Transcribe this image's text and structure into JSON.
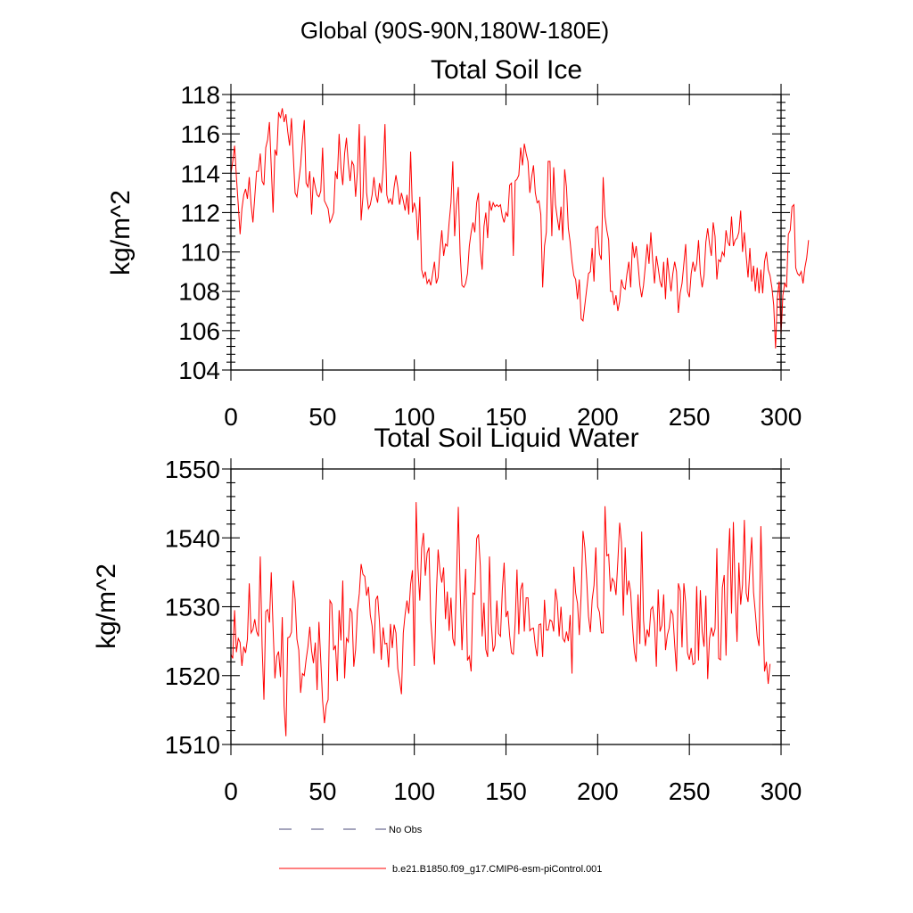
{
  "figure": {
    "suptitle": "Global (90S-90N,180W-180E)"
  },
  "chart_data": [
    {
      "type": "line",
      "title": "Total Soil Ice",
      "xlabel": "",
      "ylabel": "kg/m^2",
      "xlim": [
        0,
        300
      ],
      "ylim": [
        104,
        118
      ],
      "xticks": [
        0,
        50,
        100,
        150,
        200,
        250,
        300
      ],
      "yticks": [
        104,
        106,
        108,
        110,
        112,
        114,
        116,
        118
      ],
      "xtick_labels": [
        "0",
        "50",
        "100",
        "150",
        "200",
        "250",
        "300"
      ],
      "ytick_labels": [
        "104",
        "106",
        "108",
        "110",
        "112",
        "114",
        "116",
        "118"
      ],
      "grid": false,
      "series": [
        {
          "name": "b.e21.B1850.f09_g17.CMIP6-esm-piControl.001",
          "color": "#ff0000",
          "x_start": 0,
          "x_step": 1,
          "values": [
            114.0,
            114.6,
            115.4,
            113.8,
            112.4,
            110.9,
            112.2,
            112.9,
            113.2,
            112.7,
            113.8,
            112.4,
            111.5,
            112.8,
            114.1,
            114.1,
            115.0,
            113.6,
            113.4,
            115.3,
            115.7,
            116.6,
            114.3,
            112.0,
            115.2,
            114.9,
            117.1,
            116.8,
            117.3,
            116.6,
            117.0,
            116.1,
            115.4,
            116.8,
            114.9,
            113.0,
            112.8,
            113.6,
            114.4,
            115.7,
            116.7,
            113.5,
            113.3,
            114.1,
            111.9,
            113.8,
            113.3,
            112.9,
            112.8,
            113.1,
            115.3,
            112.6,
            112.4,
            112.2,
            111.5,
            111.7,
            112.0,
            114.1,
            113.7,
            116.0,
            114.3,
            113.4,
            115.0,
            115.8,
            114.5,
            113.6,
            114.6,
            114.4,
            112.8,
            114.1,
            116.5,
            111.6,
            112.8,
            115.9,
            113.0,
            112.2,
            112.4,
            112.9,
            113.8,
            112.9,
            112.5,
            113.5,
            113.0,
            114.2,
            116.5,
            112.9,
            112.5,
            112.7,
            112.4,
            113.3,
            113.9,
            113.3,
            112.4,
            113.0,
            112.6,
            112.1,
            112.9,
            111.9,
            115.1,
            112.0,
            112.5,
            112.1,
            110.6,
            112.8,
            109.1,
            108.7,
            109.0,
            108.4,
            108.6,
            108.3,
            108.9,
            109.5,
            108.4,
            108.7,
            110.1,
            111.1,
            109.8,
            110.4,
            110.3,
            111.5,
            112.5,
            114.6,
            110.8,
            112.4,
            113.3,
            109.9,
            108.3,
            108.2,
            108.4,
            108.9,
            110.3,
            111.0,
            111.5,
            111.0,
            112.5,
            113.0,
            110.1,
            109.1,
            111.3,
            112.0,
            110.7,
            112.6,
            112.1,
            112.5,
            112.3,
            112.4,
            112.3,
            112.4,
            111.8,
            111.5,
            112.0,
            111.8,
            113.4,
            113.5,
            109.8,
            113.6,
            113.7,
            113.9,
            115.3,
            114.4,
            115.5,
            115.0,
            114.6,
            113.0,
            113.8,
            114.4,
            113.0,
            112.5,
            112.6,
            111.9,
            108.2,
            110.3,
            111.0,
            114.6,
            114.6,
            110.8,
            114.3,
            112.4,
            111.7,
            111.1,
            112.3,
            110.6,
            114.2,
            113.3,
            111.2,
            110.5,
            109.5,
            108.8,
            108.6,
            107.6,
            108.6,
            106.6,
            106.5,
            107.3,
            108.1,
            108.9,
            109.0,
            110.2,
            108.5,
            111.2,
            111.3,
            109.9,
            109.6,
            113.8,
            111.8,
            111.1,
            110.6,
            108.0,
            108.0,
            107.3,
            107.8,
            107.0,
            107.5,
            108.6,
            108.2,
            108.1,
            108.9,
            109.5,
            108.2,
            110.5,
            109.7,
            110.3,
            109.4,
            108.3,
            107.7,
            108.3,
            109.3,
            110.4,
            109.4,
            111.0,
            109.6,
            108.4,
            109.8,
            109.2,
            108.5,
            108.2,
            109.5,
            107.6,
            109.7,
            108.8,
            108.0,
            108.9,
            109.5,
            109.0,
            106.9,
            107.9,
            108.4,
            109.4,
            110.4,
            108.0,
            107.7,
            108.9,
            109.5,
            109.0,
            109.4,
            110.6,
            108.9,
            108.2,
            108.8,
            110.5,
            111.2,
            110.4,
            109.8,
            111.5,
            110.8,
            108.6,
            109.6,
            109.5,
            110.0,
            109.8,
            111.1,
            110.5,
            110.3,
            111.8,
            110.3,
            110.6,
            110.7,
            111.0,
            112.1,
            110.0,
            111.0,
            109.8,
            108.7,
            110.2,
            108.5,
            109.3,
            108.0,
            109.2,
            107.9,
            109.1,
            107.9,
            109.5,
            110.0,
            109.1,
            108.8,
            108.2,
            107.3,
            105.1,
            107.7,
            108.5,
            105.8,
            107.8,
            108.4,
            108.2,
            110.9,
            111.1,
            112.3,
            112.4,
            109.2,
            108.9,
            108.8,
            109.0,
            108.4,
            109.2,
            109.7,
            110.6
          ]
        }
      ]
    },
    {
      "type": "line",
      "title": "Total Soil Liquid Water",
      "xlabel": "",
      "ylabel": "kg/m^2",
      "xlim": [
        0,
        300
      ],
      "ylim": [
        1510,
        1550
      ],
      "xticks": [
        0,
        50,
        100,
        150,
        200,
        250,
        300
      ],
      "yticks": [
        1510,
        1520,
        1530,
        1540,
        1550
      ],
      "xtick_labels": [
        "0",
        "50",
        "100",
        "150",
        "200",
        "250",
        "300"
      ],
      "ytick_labels": [
        "1510",
        "1520",
        "1530",
        "1540",
        "1550"
      ],
      "grid": false,
      "series": [
        {
          "name": "b.e21.B1850.f09_g17.CMIP6-esm-piControl.001",
          "color": "#ff0000",
          "x_start": 0,
          "x_step": 1,
          "values": [
            1523.1,
            1522.5,
            1529.5,
            1523.4,
            1525.4,
            1524.8,
            1521.4,
            1524.2,
            1523.3,
            1525.3,
            1533.4,
            1526.2,
            1526.7,
            1528.2,
            1526.4,
            1525.7,
            1537.3,
            1524.3,
            1516.5,
            1529.3,
            1529.6,
            1527.7,
            1535.0,
            1526.8,
            1519.6,
            1522.8,
            1523.5,
            1519.8,
            1528.5,
            1515.6,
            1511.2,
            1525.5,
            1525.6,
            1526.3,
            1533.8,
            1531.1,
            1525.3,
            1523.7,
            1517.5,
            1520.3,
            1520.0,
            1522.3,
            1524.2,
            1527.1,
            1523.6,
            1521.8,
            1524.8,
            1517.9,
            1527.8,
            1522.2,
            1516.3,
            1513.1,
            1515.7,
            1516.5,
            1530.9,
            1530.4,
            1523.7,
            1524.4,
            1519.2,
            1529.5,
            1525.1,
            1533.8,
            1519.6,
            1525.4,
            1524.9,
            1529.8,
            1529.2,
            1521.3,
            1523.8,
            1529.5,
            1531.9,
            1536.2,
            1534.7,
            1534.4,
            1531.6,
            1532.9,
            1528.8,
            1527.2,
            1523.2,
            1531.0,
            1531.6,
            1527.8,
            1522.3,
            1527.0,
            1524.6,
            1524.7,
            1521.2,
            1527.5,
            1524.0,
            1527.4,
            1526.2,
            1521.0,
            1519.3,
            1517.3,
            1526.2,
            1528.9,
            1530.9,
            1529.0,
            1533.3,
            1535.3,
            1521.4,
            1545.2,
            1535.6,
            1530.9,
            1538.5,
            1540.7,
            1534.5,
            1537.8,
            1538.6,
            1528.0,
            1524.3,
            1521.6,
            1531.7,
            1538.3,
            1535.2,
            1533.5,
            1535.7,
            1528.2,
            1532.2,
            1526.5,
            1531.3,
            1525.4,
            1524.3,
            1533.6,
            1544.5,
            1532.7,
            1523.7,
            1530.0,
            1535.5,
            1522.2,
            1522.8,
            1520.6,
            1532.0,
            1531.8,
            1539.9,
            1540.5,
            1535.9,
            1525.7,
            1530.6,
            1523.8,
            1522.7,
            1537.3,
            1527.6,
            1523.5,
            1524.4,
            1530.9,
            1526.1,
            1525.7,
            1532.4,
            1536.4,
            1528.5,
            1529.4,
            1525.8,
            1523.3,
            1523.1,
            1527.6,
            1535.4,
            1526.0,
            1532.5,
            1533.5,
            1526.4,
            1531.3,
            1531.3,
            1526.5,
            1526.8,
            1526.9,
            1524.3,
            1522.8,
            1527.4,
            1527.5,
            1522.7,
            1531.0,
            1526.6,
            1526.6,
            1528.1,
            1527.9,
            1526.4,
            1532.6,
            1530.7,
            1525.7,
            1530.0,
            1525.4,
            1524.9,
            1526.4,
            1525.0,
            1528.8,
            1520.3,
            1535.8,
            1532.0,
            1530.5,
            1525.9,
            1531.8,
            1541.0,
            1538.6,
            1534.1,
            1528.6,
            1526.3,
            1531.0,
            1533.1,
            1538.6,
            1530.0,
            1529.2,
            1526.2,
            1526.2,
            1544.6,
            1537.4,
            1537.6,
            1532.2,
            1534.1,
            1533.6,
            1531.7,
            1536.6,
            1542.2,
            1539.3,
            1528.7,
            1538.6,
            1531.7,
            1533.8,
            1532.1,
            1527.2,
            1523.5,
            1522.0,
            1531.8,
            1524.6,
            1540.9,
            1528.1,
            1524.3,
            1526.7,
            1525.6,
            1529.6,
            1530.0,
            1527.6,
            1521.3,
            1532.5,
            1526.4,
            1527.3,
            1531.8,
            1523.7,
            1525.9,
            1526.9,
            1529.5,
            1528.9,
            1524.5,
            1520.6,
            1533.4,
            1532.3,
            1524.1,
            1533.4,
            1530.6,
            1523.3,
            1522.3,
            1524.0,
            1521.6,
            1521.8,
            1533.0,
            1522.2,
            1532.4,
            1526.4,
            1524.2,
            1531.6,
            1519.5,
            1525.4,
            1527.0,
            1525.7,
            1526.8,
            1538.5,
            1522.5,
            1522.3,
            1532.8,
            1534.6,
            1522.9,
            1535.3,
            1541.4,
            1529.0,
            1542.3,
            1532.2,
            1524.9,
            1536.4,
            1530.3,
            1533.2,
            1542.6,
            1532.0,
            1530.7,
            1535.5,
            1540.1,
            1532.1,
            1529.1,
            1525.7,
            1524.3,
            1541.7,
            1531.0,
            1520.6,
            1522.0,
            1518.8,
            1521.7
          ]
        }
      ]
    }
  ],
  "legend": {
    "entries": [
      {
        "label": "No Obs",
        "color": "#4a4a7a",
        "style": "dashed"
      },
      {
        "label": "b.e21.B1850.f09_g17.CMIP6-esm-piControl.001",
        "color": "#ff0000",
        "style": "solid"
      }
    ]
  }
}
